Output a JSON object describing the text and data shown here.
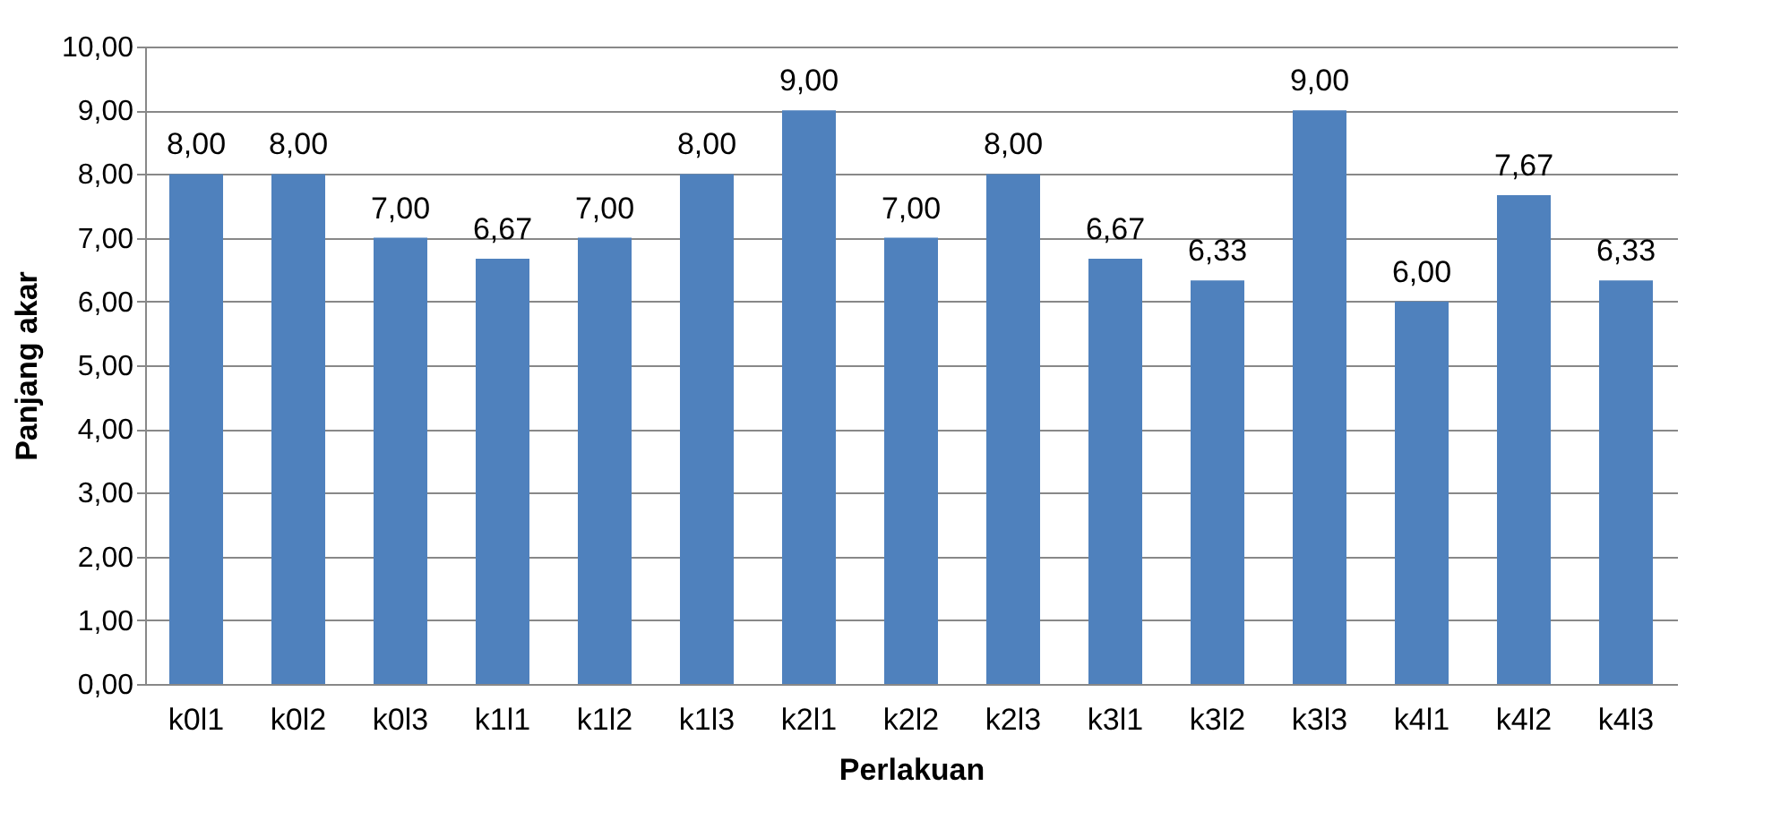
{
  "chart_data": {
    "type": "bar",
    "xlabel": "Perlakuan",
    "ylabel": "Panjang akar",
    "categories": [
      "k0l1",
      "k0l2",
      "k0l3",
      "k1l1",
      "k1l2",
      "k1l3",
      "k2l1",
      "k2l2",
      "k2l3",
      "k3l1",
      "k3l2",
      "k3l3",
      "k4l1",
      "k4l2",
      "k4l3"
    ],
    "values": [
      8,
      8,
      7,
      6.67,
      7,
      8,
      9,
      7,
      8,
      6.67,
      6.33,
      9,
      6,
      7.67,
      6.33
    ],
    "value_labels": [
      "8,00",
      "8,00",
      "7,00",
      "6,67",
      "7,00",
      "8,00",
      "9,00",
      "7,00",
      "8,00",
      "6,67",
      "6,33",
      "9,00",
      "6,00",
      "7,67",
      "6,33"
    ],
    "color": "#4f81bd",
    "ylim": [
      0,
      10
    ],
    "yticks": [
      {
        "value": 0,
        "label": "0,00"
      },
      {
        "value": 1,
        "label": "1,00"
      },
      {
        "value": 2,
        "label": "2,00"
      },
      {
        "value": 3,
        "label": "3,00"
      },
      {
        "value": 4,
        "label": "4,00"
      },
      {
        "value": 5,
        "label": "5,00"
      },
      {
        "value": 6,
        "label": "6,00"
      },
      {
        "value": 7,
        "label": "7,00"
      },
      {
        "value": 8,
        "label": "8,00"
      },
      {
        "value": 9,
        "label": "9,00"
      },
      {
        "value": 10,
        "label": "10,00"
      }
    ],
    "grid": "y"
  }
}
